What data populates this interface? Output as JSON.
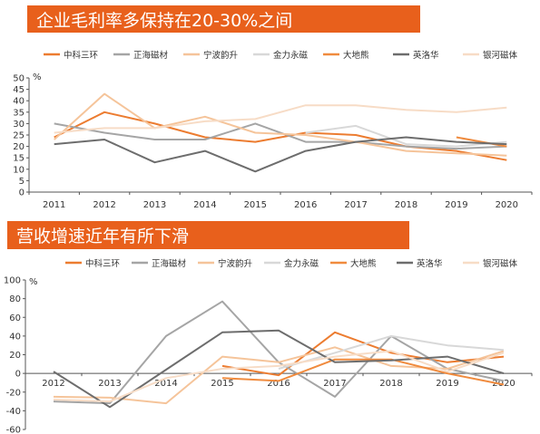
{
  "colors": {
    "banner": "#e8601c",
    "axis": "#555555",
    "text": "#333333"
  },
  "legend_order": [
    "中科三环",
    "正海磁材",
    "宁波韵升",
    "金力永磁",
    "大地熊",
    "英洛华",
    "银河磁体"
  ],
  "series_colors": {
    "中科三环": "#ec7c30",
    "正海磁材": "#a5a5a5",
    "宁波韵升": "#f5c49a",
    "金力永磁": "#d8d8d8",
    "大地熊": "#f08b3e",
    "英洛华": "#6d6d6d",
    "银河磁体": "#f7dcc6"
  },
  "chart_data": [
    {
      "type": "line",
      "title": "企业毛利率多保持在20-30%之间",
      "unit_label": "%",
      "x": [
        "2011",
        "2012",
        "2013",
        "2014",
        "2015",
        "2016",
        "2017",
        "2018",
        "2019",
        "2020"
      ],
      "ylim": [
        0,
        50
      ],
      "yticks": [
        0,
        5,
        10,
        15,
        20,
        25,
        30,
        35,
        40,
        45,
        50
      ],
      "legend_position": "top",
      "series": [
        {
          "name": "中科三环",
          "values": [
            24,
            35,
            30,
            24,
            22,
            26,
            25,
            20,
            18,
            14
          ]
        },
        {
          "name": "正海磁材",
          "values": [
            30,
            26,
            23,
            23,
            30,
            22,
            22,
            20,
            19,
            20
          ]
        },
        {
          "name": "宁波韵升",
          "values": [
            23,
            43,
            28,
            33,
            26,
            25,
            22,
            18,
            17,
            16
          ]
        },
        {
          "name": "金力永磁",
          "values": [
            null,
            null,
            null,
            null,
            null,
            26,
            29,
            21,
            20,
            22
          ]
        },
        {
          "name": "大地熊",
          "values": [
            null,
            null,
            null,
            null,
            null,
            null,
            null,
            null,
            24,
            20
          ]
        },
        {
          "name": "英洛华",
          "values": [
            21,
            23,
            13,
            18,
            9,
            18,
            22,
            24,
            22,
            21
          ]
        },
        {
          "name": "银河磁体",
          "values": [
            26,
            28,
            28,
            31,
            32,
            38,
            38,
            36,
            35,
            37
          ]
        }
      ]
    },
    {
      "type": "line",
      "title": "营收增速近年有所下滑",
      "unit_label": "%",
      "x": [
        "2012",
        "2013",
        "2014",
        "2015",
        "2016",
        "2017",
        "2018",
        "2019",
        "2020"
      ],
      "ylim": [
        -60,
        100
      ],
      "yticks": [
        -60,
        -40,
        -20,
        0,
        20,
        40,
        60,
        80,
        100
      ],
      "legend_position": "top",
      "series": [
        {
          "name": "中科三环",
          "values": [
            null,
            null,
            null,
            8,
            -2,
            44,
            22,
            12,
            18
          ]
        },
        {
          "name": "正海磁材",
          "values": [
            -30,
            -32,
            40,
            77,
            12,
            -25,
            40,
            5,
            -8
          ]
        },
        {
          "name": "宁波韵升",
          "values": [
            -25,
            -26,
            -32,
            18,
            12,
            28,
            8,
            5,
            24
          ]
        },
        {
          "name": "金力永磁",
          "values": [
            null,
            null,
            null,
            null,
            5,
            22,
            40,
            30,
            25
          ]
        },
        {
          "name": "大地熊",
          "values": [
            null,
            null,
            null,
            -5,
            -8,
            15,
            15,
            0,
            -12
          ]
        },
        {
          "name": "英洛华",
          "values": [
            2,
            -36,
            4,
            44,
            46,
            12,
            14,
            18,
            0
          ]
        },
        {
          "name": "银河磁体",
          "values": [
            -28,
            -30,
            -5,
            5,
            8,
            18,
            24,
            2,
            22
          ]
        }
      ]
    }
  ]
}
